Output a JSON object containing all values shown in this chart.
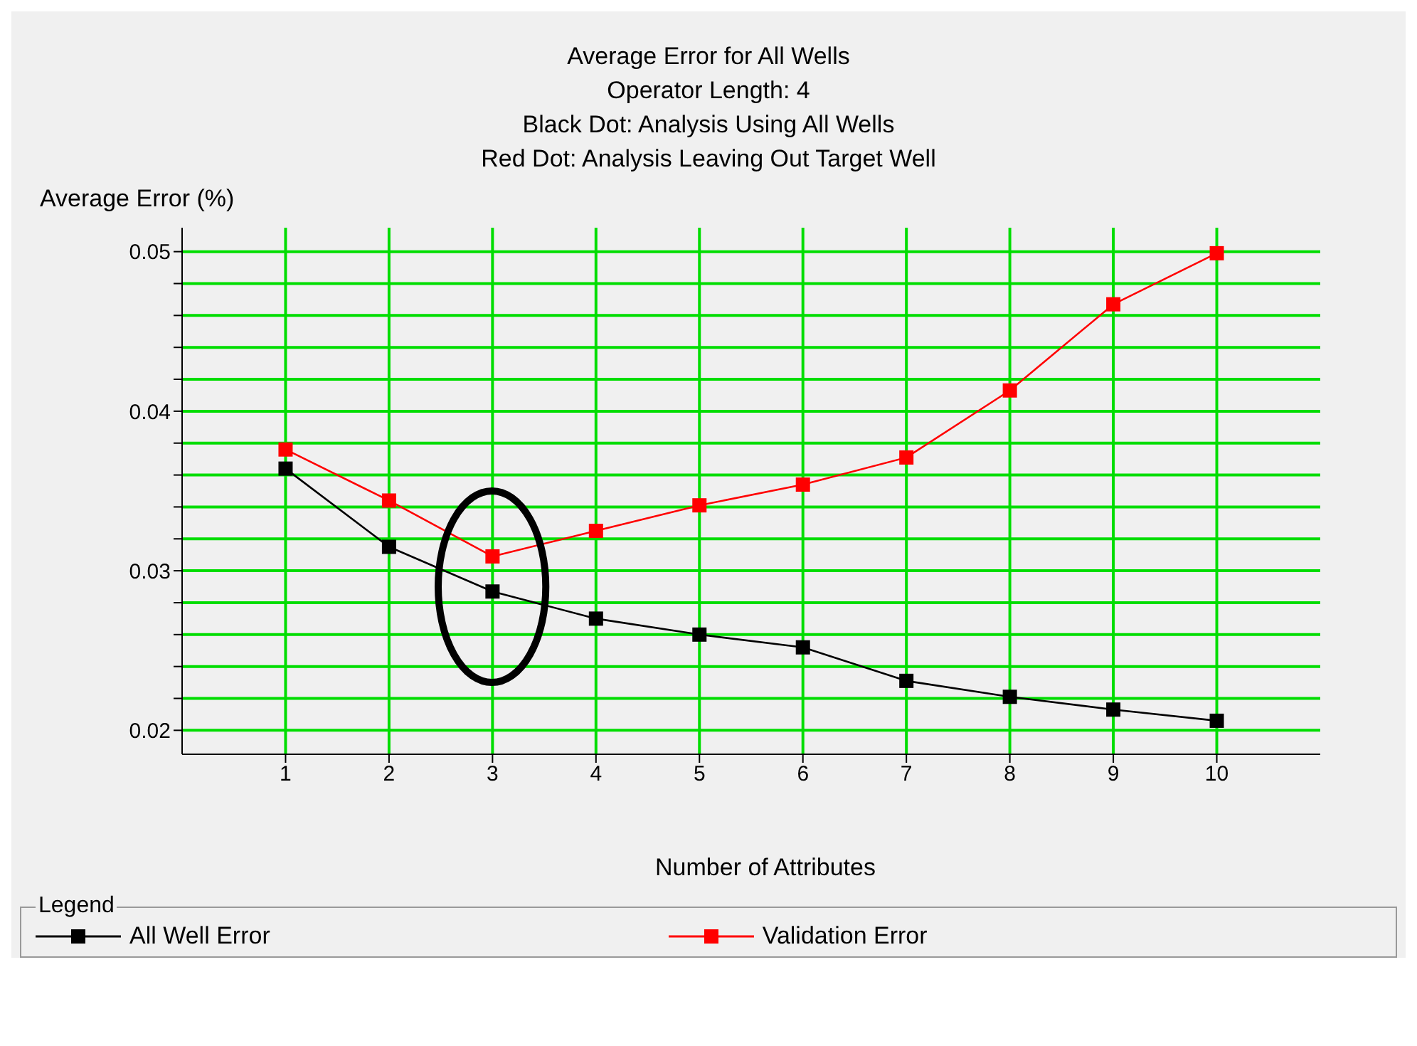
{
  "chart_data": {
    "type": "line",
    "title": "Average Error for All Wells",
    "subtitle": "Operator Length: 4\nBlack Dot: Analysis Using All Wells\nRed Dot: Analysis Leaving Out Target Well",
    "xlabel": "Number of Attributes",
    "ylabel": "Average Error (%)",
    "legend_title": "Legend",
    "x": [
      1,
      2,
      3,
      4,
      5,
      6,
      7,
      8,
      9,
      10
    ],
    "xlim": [
      0,
      11
    ],
    "xticks": [
      1,
      2,
      3,
      4,
      5,
      6,
      7,
      8,
      9,
      10
    ],
    "ylim": [
      0.0185,
      0.0515
    ],
    "yticks": [
      0.02,
      {
        "value": 0.022,
        "label": null
      },
      {
        "value": 0.024,
        "label": null
      },
      {
        "value": 0.026,
        "label": null
      },
      {
        "value": 0.028,
        "label": null
      },
      0.03,
      {
        "value": 0.032,
        "label": null
      },
      {
        "value": 0.034,
        "label": null
      },
      {
        "value": 0.036,
        "label": null
      },
      {
        "value": 0.038,
        "label": null
      },
      0.04,
      {
        "value": 0.042,
        "label": null
      },
      {
        "value": 0.044,
        "label": null
      },
      {
        "value": 0.046,
        "label": null
      },
      {
        "value": 0.048,
        "label": null
      },
      0.05
    ],
    "grid": true,
    "legend": "bottom",
    "marker": "square",
    "line_style": "solid",
    "series": [
      {
        "name": "All Well Error",
        "color": "#000000",
        "values": [
          0.0364,
          0.0315,
          0.0287,
          0.027,
          0.026,
          0.0252,
          0.0231,
          0.0221,
          0.0213,
          0.0206
        ]
      },
      {
        "name": "Validation Error",
        "color": "#ff0000",
        "values": [
          0.0376,
          0.0344,
          0.0309,
          0.0325,
          0.0341,
          0.0354,
          0.0371,
          0.0413,
          0.0467,
          0.0499
        ]
      }
    ]
  }
}
